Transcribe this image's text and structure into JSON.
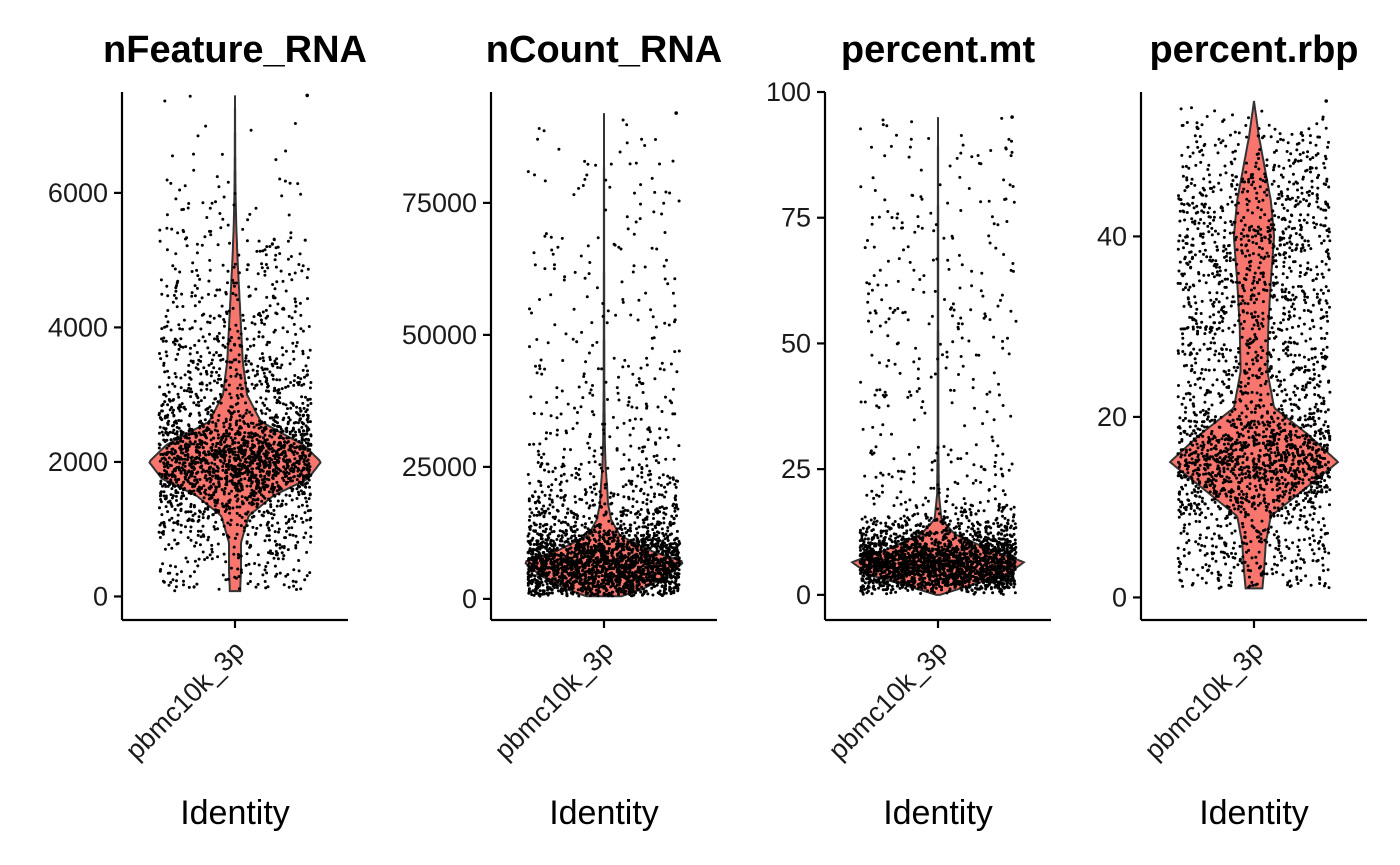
{
  "chart_data": [
    {
      "type": "violin",
      "title": "nFeature_RNA",
      "xlabel": "Identity",
      "ylabel": "",
      "categories": [
        "pbmc10k_3p"
      ],
      "ylim": [
        -350,
        7500
      ],
      "yticks": [
        0,
        2000,
        4000,
        6000
      ],
      "ytick_labels": [
        "0",
        "2000",
        "4000",
        "6000"
      ],
      "violin_color": "#F8766D",
      "n_points_shown": 2400,
      "max_value": 7450,
      "density_profile": [
        [
          80,
          0.06
        ],
        [
          400,
          0.07
        ],
        [
          800,
          0.07
        ],
        [
          1200,
          0.16
        ],
        [
          1500,
          0.45
        ],
        [
          1750,
          0.85
        ],
        [
          2000,
          1.0
        ],
        [
          2250,
          0.8
        ],
        [
          2600,
          0.3
        ],
        [
          3000,
          0.14
        ],
        [
          3500,
          0.09
        ],
        [
          4000,
          0.07
        ],
        [
          4500,
          0.05
        ],
        [
          5000,
          0.03
        ],
        [
          5500,
          0.015
        ],
        [
          6000,
          0.006
        ],
        [
          6500,
          0.003
        ],
        [
          7450,
          0.0
        ]
      ]
    },
    {
      "type": "violin",
      "title": "nCount_RNA",
      "xlabel": "Identity",
      "ylabel": "",
      "categories": [
        "pbmc10k_3p"
      ],
      "ylim": [
        -4000,
        96000
      ],
      "yticks": [
        0,
        25000,
        50000,
        75000
      ],
      "ytick_labels": [
        "0",
        "25000",
        "50000",
        "75000"
      ],
      "violin_color": "#F8766D",
      "n_points_shown": 2600,
      "max_value": 92000,
      "density_profile": [
        [
          500,
          0.22
        ],
        [
          2000,
          0.5
        ],
        [
          4500,
          0.8
        ],
        [
          7000,
          1.0
        ],
        [
          9000,
          0.6
        ],
        [
          12000,
          0.2
        ],
        [
          15000,
          0.09
        ],
        [
          18000,
          0.05
        ],
        [
          21000,
          0.04
        ],
        [
          25000,
          0.02
        ],
        [
          30000,
          0.01
        ],
        [
          40000,
          0.004
        ],
        [
          60000,
          0.002
        ],
        [
          92000,
          0.0
        ]
      ]
    },
    {
      "type": "violin",
      "title": "percent.mt",
      "xlabel": "Identity",
      "ylabel": "",
      "categories": [
        "pbmc10k_3p"
      ],
      "ylim": [
        -5,
        100
      ],
      "yticks": [
        0,
        25,
        50,
        75,
        100
      ],
      "ytick_labels": [
        "0",
        "25",
        "50",
        "75",
        "100"
      ],
      "violin_color": "#F8766D",
      "n_points_shown": 2600,
      "max_value": 95,
      "density_profile": [
        [
          0,
          0.02
        ],
        [
          2,
          0.4
        ],
        [
          4,
          0.8
        ],
        [
          6.5,
          1.0
        ],
        [
          9,
          0.6
        ],
        [
          12,
          0.2
        ],
        [
          15,
          0.04
        ],
        [
          20,
          0.01
        ],
        [
          30,
          0.004
        ],
        [
          50,
          0.003
        ],
        [
          75,
          0.002
        ],
        [
          95,
          0.0
        ]
      ]
    },
    {
      "type": "violin",
      "title": "percent.rbp",
      "xlabel": "Identity",
      "ylabel": "",
      "categories": [
        "pbmc10k_3p"
      ],
      "ylim": [
        -2.5,
        56
      ],
      "yticks": [
        0,
        20,
        40
      ],
      "ytick_labels": [
        "0",
        "20",
        "40"
      ],
      "violin_color": "#F8766D",
      "n_points_shown": 2600,
      "max_value": 55,
      "density_profile": [
        [
          1,
          0.1
        ],
        [
          3,
          0.12
        ],
        [
          6,
          0.14
        ],
        [
          9,
          0.2
        ],
        [
          12,
          0.6
        ],
        [
          15,
          1.0
        ],
        [
          18,
          0.65
        ],
        [
          21,
          0.24
        ],
        [
          25,
          0.16
        ],
        [
          30,
          0.17
        ],
        [
          35,
          0.2
        ],
        [
          40,
          0.24
        ],
        [
          44,
          0.2
        ],
        [
          48,
          0.12
        ],
        [
          51,
          0.06
        ],
        [
          55,
          0.0
        ]
      ]
    }
  ]
}
